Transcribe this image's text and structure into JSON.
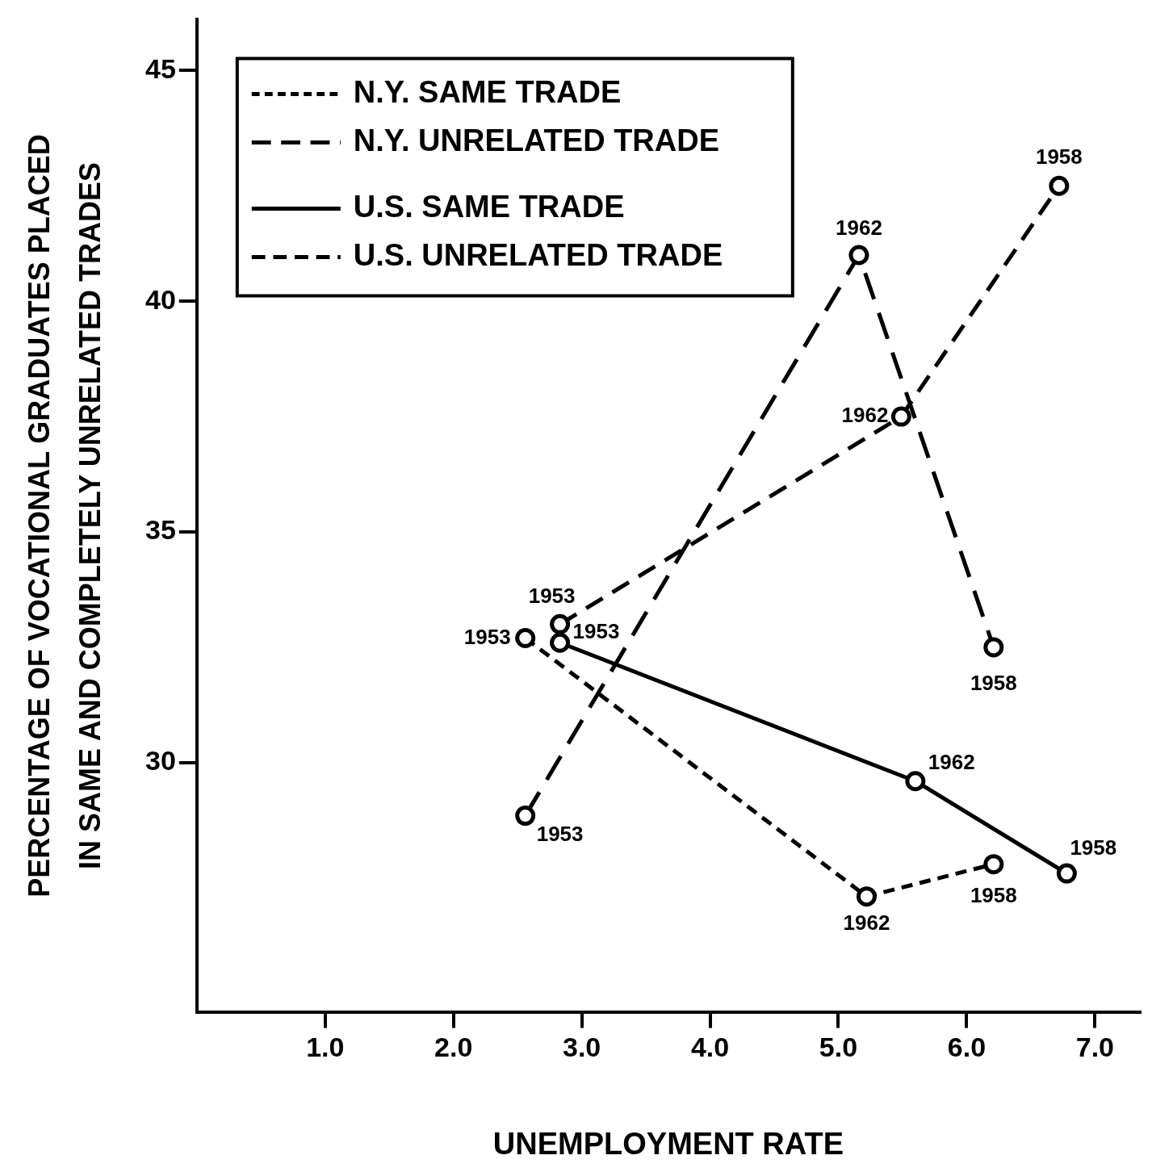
{
  "chart_data": {
    "type": "line",
    "xlabel": "UNEMPLOYMENT RATE",
    "ylabel": "PERCENTAGE OF VOCATIONAL GRADUATES PLACED\nIN SAME AND COMPLETELY UNRELATED TRADES",
    "xlim": [
      0,
      7.35
    ],
    "ylim": [
      24.6,
      46.1
    ],
    "xticks": [
      {
        "value": 1,
        "label": "1.0"
      },
      {
        "value": 2,
        "label": "2.0"
      },
      {
        "value": 3,
        "label": "3.0"
      },
      {
        "value": 4,
        "label": "4.0"
      },
      {
        "value": 5,
        "label": "5.0"
      },
      {
        "value": 6,
        "label": "6.0"
      },
      {
        "value": 7,
        "label": "7.0"
      }
    ],
    "yticks": [
      30,
      35,
      40,
      45
    ],
    "grid": false,
    "legend": "top left",
    "marker": "circle",
    "series": [
      {
        "name": "N.Y. SAME TRADE",
        "color": "#000000",
        "line_style": "dotted",
        "x": [
          2.56,
          5.22,
          6.21
        ],
        "values": [
          32.7,
          27.1,
          27.8
        ]
      },
      {
        "name": "N.Y. UNRELATED TRADE",
        "color": "#000000",
        "line_style": "dashed",
        "x": [
          2.56,
          5.16,
          6.21
        ],
        "values": [
          28.85,
          41.0,
          32.5
        ]
      },
      {
        "name": "U.S. SAME TRADE",
        "color": "#000000",
        "line_style": "solid",
        "x": [
          2.83,
          5.6,
          6.78
        ],
        "values": [
          32.6,
          29.6,
          27.6
        ]
      },
      {
        "name": "U.S. UNRELATED TRADE",
        "color": "#000000",
        "line_style": "dashdot",
        "x": [
          2.83,
          5.49,
          6.72
        ],
        "values": [
          33.0,
          37.5,
          42.5
        ]
      }
    ],
    "annotations": [
      {
        "text": "1953",
        "x": 2.56,
        "y": 32.7
      },
      {
        "text": "1962",
        "x": 5.22,
        "y": 27.1
      },
      {
        "text": "1958",
        "x": 6.21,
        "y": 27.8
      },
      {
        "text": "1953",
        "x": 2.56,
        "y": 28.85
      },
      {
        "text": "1962",
        "x": 5.16,
        "y": 41.0
      },
      {
        "text": "1958",
        "x": 6.21,
        "y": 32.5
      },
      {
        "text": "1953",
        "x": 2.83,
        "y": 32.6
      },
      {
        "text": "1962",
        "x": 5.6,
        "y": 29.6
      },
      {
        "text": "1958",
        "x": 6.78,
        "y": 27.6
      },
      {
        "text": "1953",
        "x": 2.83,
        "y": 33.0
      },
      {
        "text": "1962",
        "x": 5.49,
        "y": 37.5
      },
      {
        "text": "1958",
        "x": 6.72,
        "y": 42.5
      }
    ]
  }
}
